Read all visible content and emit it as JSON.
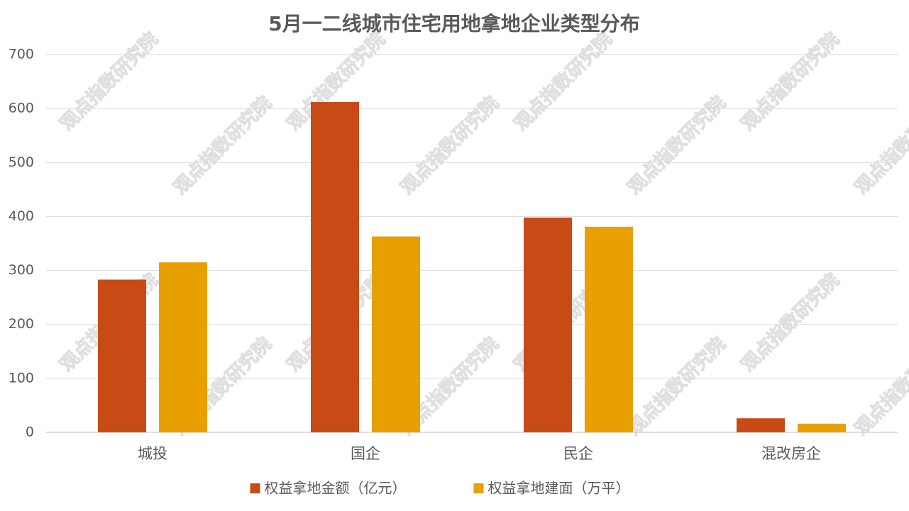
{
  "chart_data": {
    "type": "bar",
    "title": "5月一二线城市住宅用地拿地企业类型分布",
    "watermark": "观点指数研究院",
    "categories": [
      "城投",
      "国企",
      "民企",
      "混改房企"
    ],
    "series": [
      {
        "name": "权益拿地金额（亿元）",
        "color": "#c84b16",
        "values": [
          283,
          612,
          398,
          26
        ]
      },
      {
        "name": "权益拿地建面（万平）",
        "color": "#e8a000",
        "values": [
          315,
          363,
          381,
          16
        ]
      }
    ],
    "ylim": [
      0,
      700
    ],
    "yticks": [
      0,
      100,
      200,
      300,
      400,
      500,
      600,
      700
    ],
    "grid": true,
    "legend": "bottom"
  }
}
